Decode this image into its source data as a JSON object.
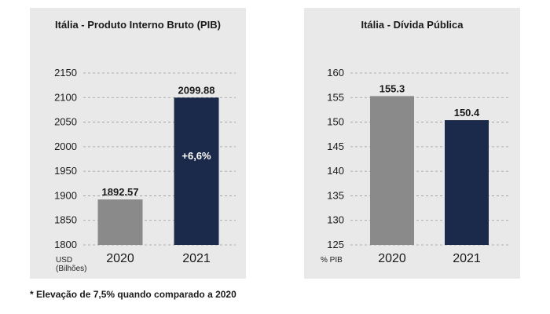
{
  "chart_data": [
    {
      "type": "bar",
      "title": "Itália - Produto Interno Bruto (PIB)",
      "categories": [
        "2020",
        "2021"
      ],
      "values": [
        1892.57,
        2099.88
      ],
      "value_labels": [
        "1892.57",
        "2099.88"
      ],
      "annotation": "+6,6%",
      "ylabel_lines": [
        "USD",
        "(Bilhões)"
      ],
      "ylim": [
        1800,
        2150
      ],
      "yticks": [
        1800,
        1850,
        1900,
        1950,
        2000,
        2050,
        2100,
        2150
      ],
      "grid": true,
      "colors": [
        "#8a8a8a",
        "#1b2a4a"
      ]
    },
    {
      "type": "bar",
      "title": "Itália - Dívida Pública",
      "categories": [
        "2020",
        "2021"
      ],
      "values": [
        155.3,
        150.4
      ],
      "value_labels": [
        "155.3",
        "150.4"
      ],
      "ylabel_lines": [
        "% PIB"
      ],
      "ylim": [
        125,
        160
      ],
      "yticks": [
        125,
        130,
        135,
        140,
        145,
        150,
        155,
        160
      ],
      "grid": true,
      "colors": [
        "#8a8a8a",
        "#1b2a4a"
      ]
    }
  ],
  "footnote": "* Elevação de 7,5% quando comparado a 2020"
}
